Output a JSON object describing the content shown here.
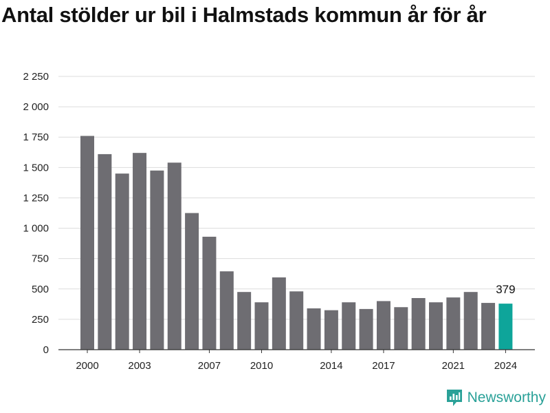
{
  "header": {
    "title": "Antal stölder ur bil i Halmstads kommun år för år"
  },
  "brand": {
    "name": "Newsworthy",
    "logo_icon": "newsworthy-logo-icon"
  },
  "colors": {
    "bar": "#6e6d72",
    "highlight": "#0ea59a",
    "grid": "#dcdcdc",
    "axis": "#333333",
    "brand": "#2aa198"
  },
  "chart_data": {
    "type": "bar",
    "title": "Antal stölder ur bil i Halmstads kommun år för år",
    "xlabel": "",
    "ylabel": "",
    "x": [
      2000,
      2001,
      2002,
      2003,
      2004,
      2005,
      2006,
      2007,
      2008,
      2009,
      2010,
      2011,
      2012,
      2013,
      2014,
      2015,
      2016,
      2017,
      2018,
      2019,
      2020,
      2021,
      2022,
      2023,
      2024
    ],
    "values": [
      1760,
      1610,
      1450,
      1620,
      1475,
      1540,
      1125,
      930,
      645,
      475,
      390,
      595,
      480,
      340,
      325,
      390,
      335,
      400,
      350,
      425,
      390,
      430,
      475,
      385,
      379
    ],
    "highlight_last": true,
    "ylim": [
      0,
      2250
    ],
    "yticks": [
      0,
      250,
      500,
      750,
      1000,
      1250,
      1500,
      1750,
      2000,
      2250
    ],
    "ytick_labels": [
      "0",
      "250",
      "500",
      "750",
      "1 000",
      "1 250",
      "1 500",
      "1 750",
      "2 000",
      "2 250"
    ],
    "xticks": [
      2000,
      2003,
      2007,
      2010,
      2014,
      2017,
      2021,
      2024
    ],
    "xtick_labels": [
      "2000",
      "2003",
      "2007",
      "2010",
      "2014",
      "2017",
      "2021",
      "2024"
    ],
    "annotation": {
      "x": 2024,
      "text": "379"
    },
    "grid": true,
    "legend": "none"
  }
}
